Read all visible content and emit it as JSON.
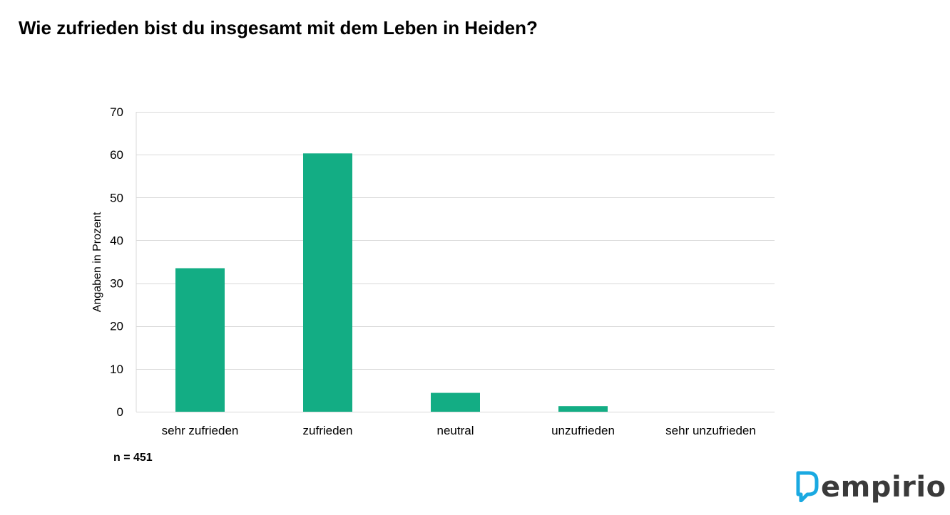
{
  "title": "Wie zufrieden bist du insgesamt mit dem Leben in Heiden?",
  "sample_note": "n = 451",
  "logo": {
    "text": "empirio",
    "icon": "speech-bubble-icon",
    "accent_color": "#1aa9e1"
  },
  "chart_data": {
    "type": "bar",
    "title": "",
    "xlabel": "",
    "ylabel": "Angaben in Prozent",
    "categories": [
      "sehr zufrieden",
      "zufrieden",
      "neutral",
      "unzufrieden",
      "sehr unzufrieden"
    ],
    "values": [
      33.5,
      60.3,
      4.4,
      1.3,
      0
    ],
    "ylim": [
      0,
      70
    ],
    "yticks": [
      0,
      10,
      20,
      30,
      40,
      50,
      60,
      70
    ],
    "grid": true,
    "bar_color": "#13ad84",
    "grid_color": "#d9d9d9"
  }
}
